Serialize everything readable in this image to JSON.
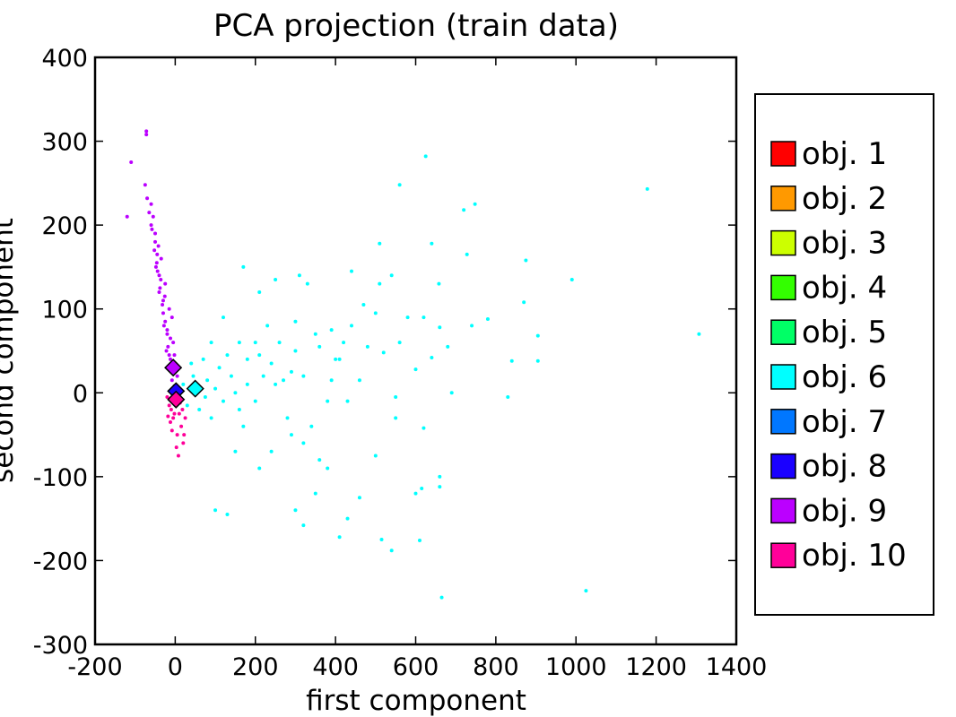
{
  "chart_data": {
    "type": "scatter",
    "title": "PCA projection (train data)",
    "xlabel": "first component",
    "ylabel": "second component",
    "xlim": [
      -200,
      1400
    ],
    "ylim": [
      -300,
      400
    ],
    "xticks": [
      "-200",
      "0",
      "200",
      "400",
      "600",
      "800",
      "1000",
      "1200",
      "1400"
    ],
    "yticks": [
      "400",
      "300",
      "200",
      "100",
      "0",
      "-100",
      "-200",
      "-300"
    ],
    "xtick_values": [
      -200,
      0,
      200,
      400,
      600,
      800,
      1000,
      1200,
      1400
    ],
    "ytick_values": [
      400,
      300,
      200,
      100,
      0,
      -100,
      -200,
      -300
    ],
    "grid": false,
    "legend_position": "right",
    "series": [
      {
        "name": "obj. 1",
        "color": "#ff0000",
        "centroid": [
          0,
          0
        ],
        "points": []
      },
      {
        "name": "obj. 2",
        "color": "#ff9900",
        "centroid": [
          0,
          0
        ],
        "points": []
      },
      {
        "name": "obj. 3",
        "color": "#ccff00",
        "centroid": [
          0,
          0
        ],
        "points": []
      },
      {
        "name": "obj. 4",
        "color": "#33ff00",
        "centroid": [
          0,
          0
        ],
        "points": []
      },
      {
        "name": "obj. 5",
        "color": "#00ff66",
        "centroid": [
          0,
          0
        ],
        "points": []
      },
      {
        "name": "obj. 6",
        "color": "#00ffff",
        "centroid": [
          50,
          5
        ],
        "points": [
          [
            560,
            248
          ],
          [
            625,
            282
          ],
          [
            1178,
            243
          ],
          [
            1307,
            70
          ],
          [
            720,
            218
          ],
          [
            748,
            225
          ],
          [
            510,
            178
          ],
          [
            640,
            178
          ],
          [
            728,
            165
          ],
          [
            875,
            158
          ],
          [
            440,
            145
          ],
          [
            540,
            140
          ],
          [
            510,
            130
          ],
          [
            658,
            130
          ],
          [
            170,
            150
          ],
          [
            210,
            120
          ],
          [
            250,
            135
          ],
          [
            310,
            140
          ],
          [
            330,
            130
          ],
          [
            990,
            135
          ],
          [
            780,
            88
          ],
          [
            870,
            108
          ],
          [
            905,
            68
          ],
          [
            905,
            38
          ],
          [
            840,
            38
          ],
          [
            830,
            -5
          ],
          [
            680,
            55
          ],
          [
            740,
            80
          ],
          [
            620,
            90
          ],
          [
            660,
            78
          ],
          [
            580,
            90
          ],
          [
            500,
            95
          ],
          [
            470,
            105
          ],
          [
            440,
            80
          ],
          [
            420,
            60
          ],
          [
            400,
            40
          ],
          [
            390,
            15
          ],
          [
            380,
            -10
          ],
          [
            430,
            -10
          ],
          [
            550,
            -5
          ],
          [
            690,
            0
          ],
          [
            520,
            48
          ],
          [
            560,
            60
          ],
          [
            600,
            28
          ],
          [
            640,
            42
          ],
          [
            620,
            -42
          ],
          [
            550,
            -30
          ],
          [
            500,
            -75
          ],
          [
            515,
            -175
          ],
          [
            540,
            -188
          ],
          [
            610,
            -176
          ],
          [
            665,
            -244
          ],
          [
            1025,
            -236
          ],
          [
            615,
            -114
          ],
          [
            660,
            -100
          ],
          [
            660,
            -112
          ],
          [
            600,
            -120
          ],
          [
            460,
            -125
          ],
          [
            430,
            -150
          ],
          [
            410,
            -172
          ],
          [
            320,
            -158
          ],
          [
            300,
            -140
          ],
          [
            350,
            -120
          ],
          [
            380,
            -90
          ],
          [
            360,
            -80
          ],
          [
            320,
            -60
          ],
          [
            290,
            -50
          ],
          [
            240,
            -70
          ],
          [
            210,
            -90
          ],
          [
            150,
            -70
          ],
          [
            100,
            -140
          ],
          [
            130,
            -145
          ],
          [
            170,
            -40
          ],
          [
            280,
            -30
          ],
          [
            340,
            -40
          ],
          [
            260,
            60
          ],
          [
            300,
            50
          ],
          [
            350,
            70
          ],
          [
            230,
            80
          ],
          [
            160,
            60
          ],
          [
            120,
            90
          ],
          [
            90,
            60
          ],
          [
            70,
            40
          ],
          [
            40,
            35
          ],
          [
            20,
            10
          ],
          [
            30,
            -15
          ],
          [
            60,
            -20
          ],
          [
            80,
            15
          ],
          [
            110,
            30
          ],
          [
            140,
            20
          ],
          [
            180,
            10
          ],
          [
            200,
            -10
          ],
          [
            220,
            20
          ],
          [
            250,
            10
          ],
          [
            120,
            -10
          ],
          [
            90,
            -30
          ],
          [
            60,
            5
          ],
          [
            100,
            5
          ],
          [
            150,
            0
          ],
          [
            180,
            40
          ],
          [
            210,
            45
          ],
          [
            240,
            35
          ],
          [
            270,
            15
          ],
          [
            290,
            25
          ],
          [
            320,
            20
          ],
          [
            45,
            20
          ],
          [
            75,
            -5
          ],
          [
            130,
            45
          ],
          [
            160,
            -20
          ],
          [
            200,
            60
          ],
          [
            300,
            85
          ],
          [
            360,
            55
          ],
          [
            390,
            75
          ],
          [
            410,
            40
          ],
          [
            460,
            15
          ],
          [
            480,
            55
          ]
        ]
      },
      {
        "name": "obj. 7",
        "color": "#0077ff",
        "centroid": [
          0,
          0
        ],
        "points": []
      },
      {
        "name": "obj. 8",
        "color": "#1a00ff",
        "centroid": [
          2,
          2
        ],
        "points": [
          [
            0,
            0
          ],
          [
            5,
            5
          ],
          [
            -5,
            2
          ],
          [
            3,
            -3
          ],
          [
            -2,
            8
          ],
          [
            6,
            -1
          ]
        ]
      },
      {
        "name": "obj. 9",
        "color": "#bb00ff",
        "centroid": [
          -5,
          30
        ],
        "points": [
          [
            -72,
            312
          ],
          [
            -72,
            308
          ],
          [
            -110,
            275
          ],
          [
            -120,
            210
          ],
          [
            -75,
            248
          ],
          [
            -70,
            232
          ],
          [
            -60,
            225
          ],
          [
            -55,
            210
          ],
          [
            -58,
            195
          ],
          [
            -50,
            180
          ],
          [
            -45,
            165
          ],
          [
            -48,
            150
          ],
          [
            -40,
            140
          ],
          [
            -38,
            125
          ],
          [
            -30,
            110
          ],
          [
            -30,
            95
          ],
          [
            -25,
            85
          ],
          [
            -20,
            70
          ],
          [
            -18,
            55
          ],
          [
            -12,
            40
          ],
          [
            -10,
            25
          ],
          [
            -8,
            15
          ],
          [
            -25,
            130
          ],
          [
            -35,
            160
          ],
          [
            -42,
            175
          ],
          [
            -15,
            100
          ],
          [
            -5,
            60
          ],
          [
            0,
            30
          ],
          [
            5,
            20
          ],
          [
            -60,
            200
          ],
          [
            -50,
            190
          ],
          [
            -40,
            120
          ],
          [
            -28,
            80
          ],
          [
            -22,
            50
          ],
          [
            -15,
            45
          ],
          [
            -32,
            105
          ],
          [
            -44,
            145
          ],
          [
            -52,
            170
          ],
          [
            -65,
            215
          ],
          [
            -12,
            65
          ],
          [
            -8,
            90
          ],
          [
            -2,
            45
          ],
          [
            -36,
            135
          ],
          [
            -26,
            115
          ],
          [
            -20,
            75
          ],
          [
            -46,
            155
          ]
        ]
      },
      {
        "name": "obj. 10",
        "color": "#ff0099",
        "centroid": [
          2,
          -8
        ],
        "points": [
          [
            0,
            -10
          ],
          [
            -10,
            -20
          ],
          [
            10,
            -25
          ],
          [
            -5,
            -30
          ],
          [
            15,
            -40
          ],
          [
            -15,
            -15
          ],
          [
            5,
            -50
          ],
          [
            20,
            -60
          ],
          [
            -20,
            -5
          ],
          [
            25,
            -30
          ],
          [
            8,
            -75
          ],
          [
            -8,
            -45
          ],
          [
            12,
            -12
          ],
          [
            18,
            -20
          ],
          [
            -12,
            -35
          ],
          [
            3,
            -65
          ],
          [
            22,
            -50
          ],
          [
            -2,
            -25
          ],
          [
            6,
            -5
          ],
          [
            -18,
            -28
          ]
        ]
      }
    ]
  }
}
